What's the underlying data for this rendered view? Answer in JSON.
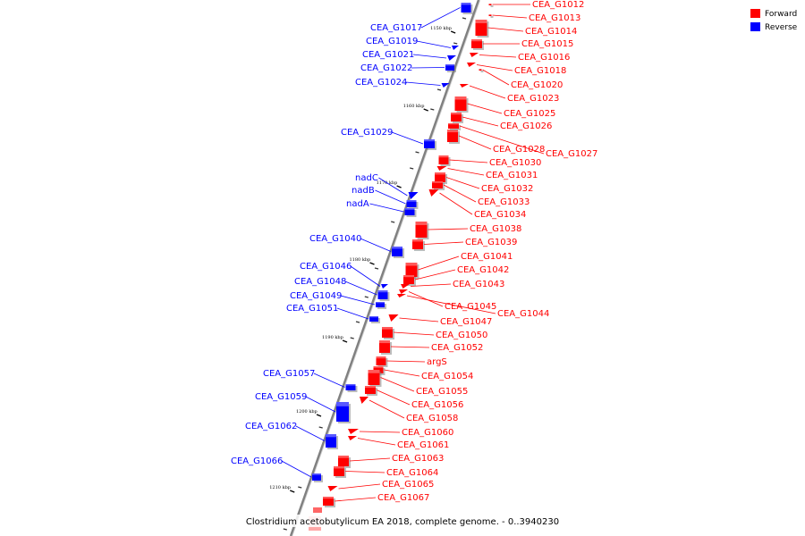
{
  "caption": "Clostridium acetobutylicum EA 2018, complete genome. - 0..3940230",
  "legend": [
    {
      "label": "Forward",
      "color": "#ff0000"
    },
    {
      "label": "Reverse",
      "color": "#0000ff"
    }
  ],
  "colors": {
    "forward": "#ff0000",
    "reverse": "#0000ff",
    "axis": "#808080"
  },
  "ticks": [
    "1150 kbp",
    "1160 kbp",
    "1170 kbp",
    "1180 kbp",
    "1190 kbp",
    "1200 kbp",
    "1210 kbp"
  ],
  "reverse_genes": [
    "CEA_G1017",
    "CEA_G1019",
    "CEA_G1021",
    "CEA_G1022",
    "CEA_G1024",
    "CEA_G1029",
    "nadC",
    "nadB",
    "nadA",
    "CEA_G1040",
    "CEA_G1046",
    "CEA_G1048",
    "CEA_G1049",
    "CEA_G1051",
    "CEA_G1057",
    "CEA_G1059",
    "CEA_G1062",
    "CEA_G1066"
  ],
  "forward_genes": [
    "CEA_G1012",
    "CEA_G1013",
    "CEA_G1014",
    "CEA_G1015",
    "CEA_G1016",
    "CEA_G1018",
    "CEA_G1020",
    "CEA_G1023",
    "CEA_G1025",
    "CEA_G1026",
    "CEA_G1028",
    "CEA_G1027",
    "CEA_G1030",
    "CEA_G1031",
    "CEA_G1032",
    "CEA_G1033",
    "CEA_G1034",
    "CEA_G1038",
    "CEA_G1039",
    "CEA_G1041",
    "CEA_G1042",
    "CEA_G1043",
    "CEA_G1045",
    "CEA_G1044",
    "CEA_G1047",
    "CEA_G1050",
    "CEA_G1052",
    "argS",
    "CEA_G1054",
    "CEA_G1055",
    "CEA_G1056",
    "CEA_G1058",
    "CEA_G1060",
    "CEA_G1061",
    "CEA_G1063",
    "CEA_G1064",
    "CEA_G1065",
    "CEA_G1067"
  ]
}
